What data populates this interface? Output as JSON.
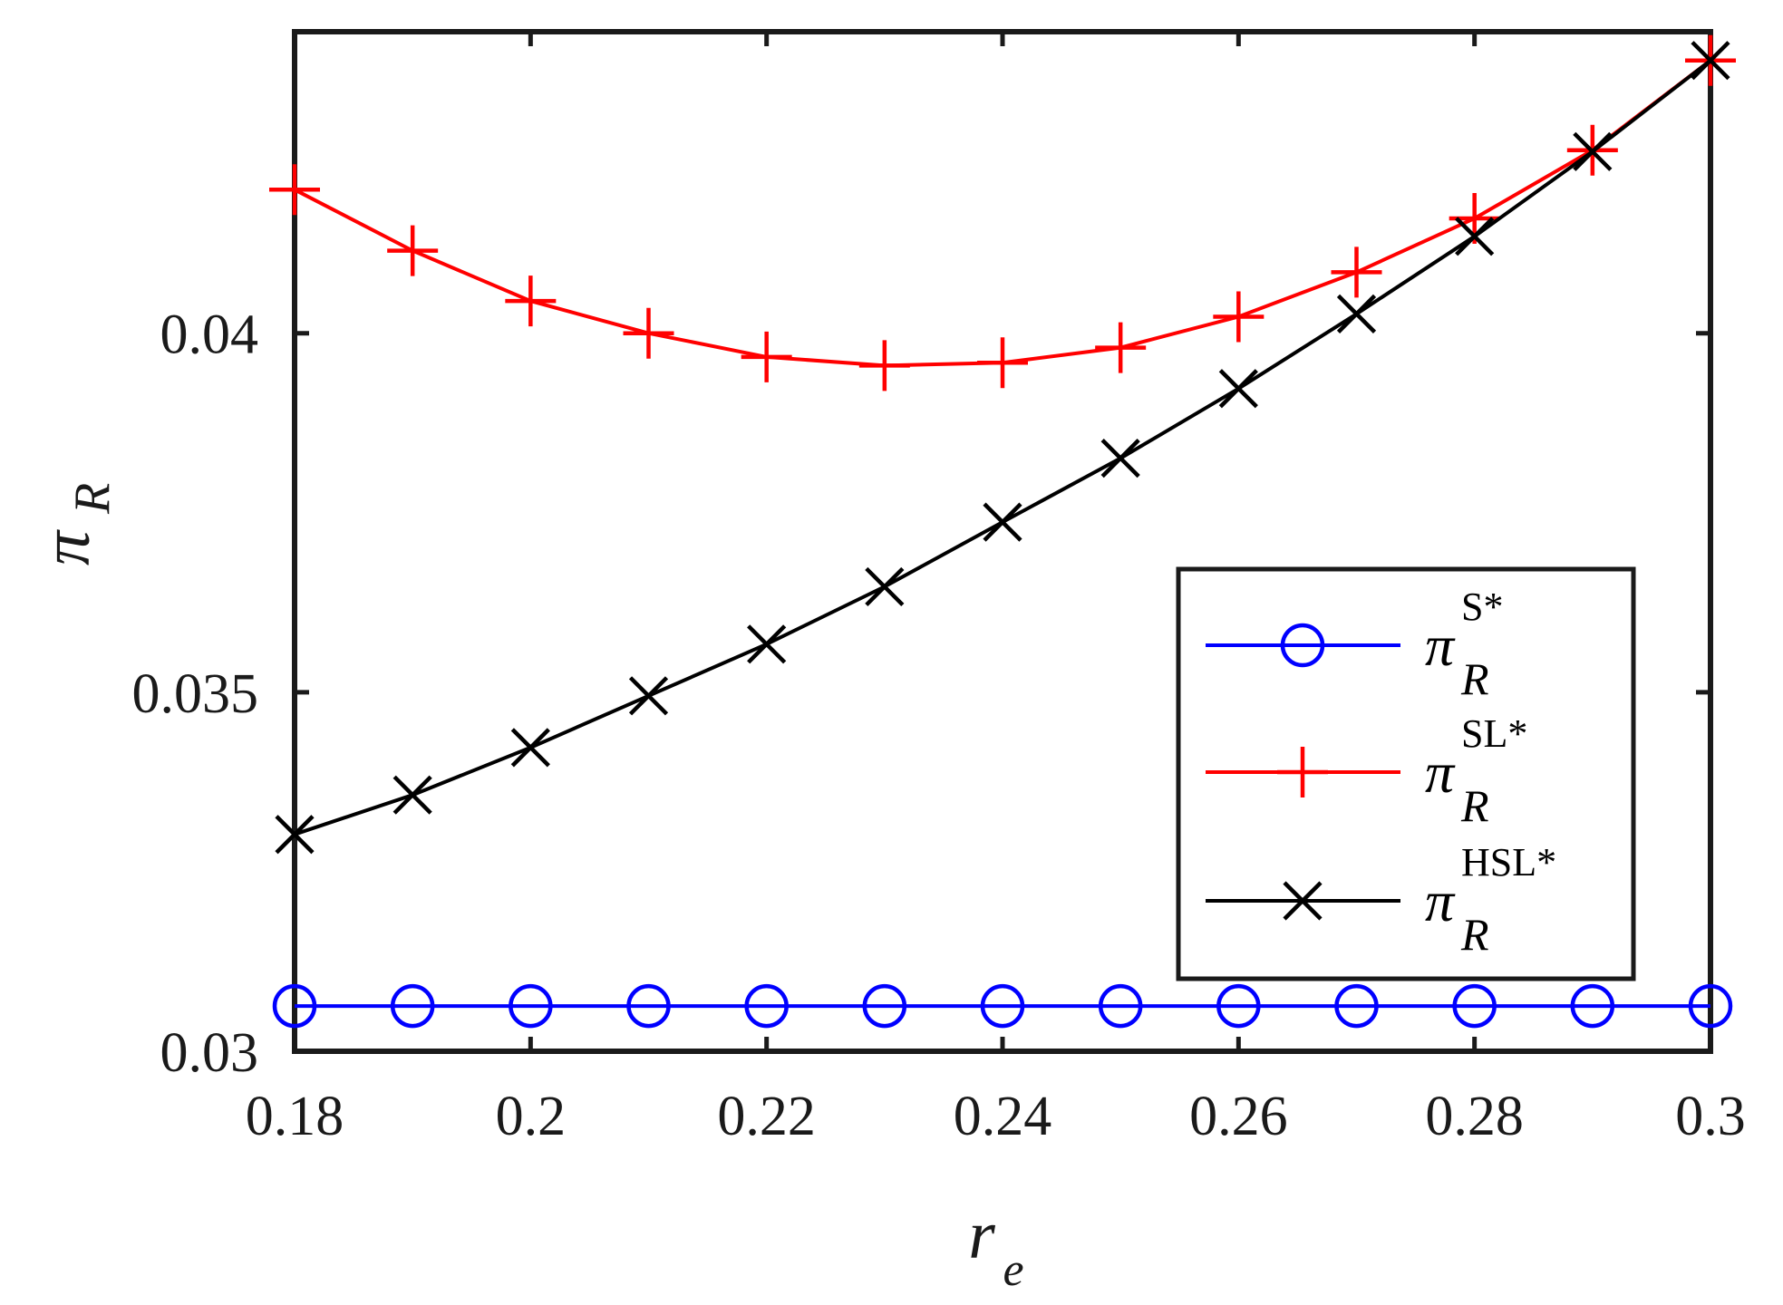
{
  "chart_data": {
    "type": "line",
    "xlabel": {
      "main": "r",
      "sub": "e"
    },
    "ylabel": {
      "main": "π",
      "sub": "R"
    },
    "x": [
      0.18,
      0.19,
      0.2,
      0.21,
      0.22,
      0.23,
      0.24,
      0.25,
      0.26,
      0.27,
      0.28,
      0.29,
      0.3
    ],
    "xlim": [
      0.18,
      0.3
    ],
    "ylim": [
      0.03,
      0.0442
    ],
    "x_ticks": [
      0.18,
      0.2,
      0.22,
      0.24,
      0.26,
      0.28,
      0.3
    ],
    "x_tick_labels": [
      "0.18",
      "0.2",
      "0.22",
      "0.24",
      "0.26",
      "0.28",
      "0.3"
    ],
    "y_ticks": [
      0.03,
      0.035,
      0.04
    ],
    "y_tick_labels": [
      "0.03",
      "0.035",
      "0.04"
    ],
    "grid": false,
    "legend_position": "right-middle",
    "series": [
      {
        "name": "π_R^{S*}",
        "label_main": "π",
        "label_sub": "R",
        "label_sup": "S*",
        "color": "#0000ff",
        "marker": "circle",
        "values": [
          0.03063,
          0.03063,
          0.03063,
          0.03063,
          0.03063,
          0.03063,
          0.03063,
          0.03063,
          0.03063,
          0.03063,
          0.03063,
          0.03063,
          0.03063
        ]
      },
      {
        "name": "π_R^{SL*}",
        "label_main": "π",
        "label_sub": "R",
        "label_sup": "SL*",
        "color": "#ff0000",
        "marker": "plus",
        "values": [
          0.042,
          0.04115,
          0.04045,
          0.04,
          0.03967,
          0.03955,
          0.03959,
          0.0398,
          0.04023,
          0.04085,
          0.0416,
          0.04255,
          0.0438
        ]
      },
      {
        "name": "π_R^{HSL*}",
        "label_main": "π",
        "label_sub": "R",
        "label_sup": "HSL*",
        "color": "#000000",
        "marker": "x",
        "values": [
          0.03302,
          0.03357,
          0.03423,
          0.03495,
          0.03567,
          0.03647,
          0.03737,
          0.03826,
          0.03923,
          0.04027,
          0.04135,
          0.04253,
          0.0438
        ]
      }
    ]
  }
}
